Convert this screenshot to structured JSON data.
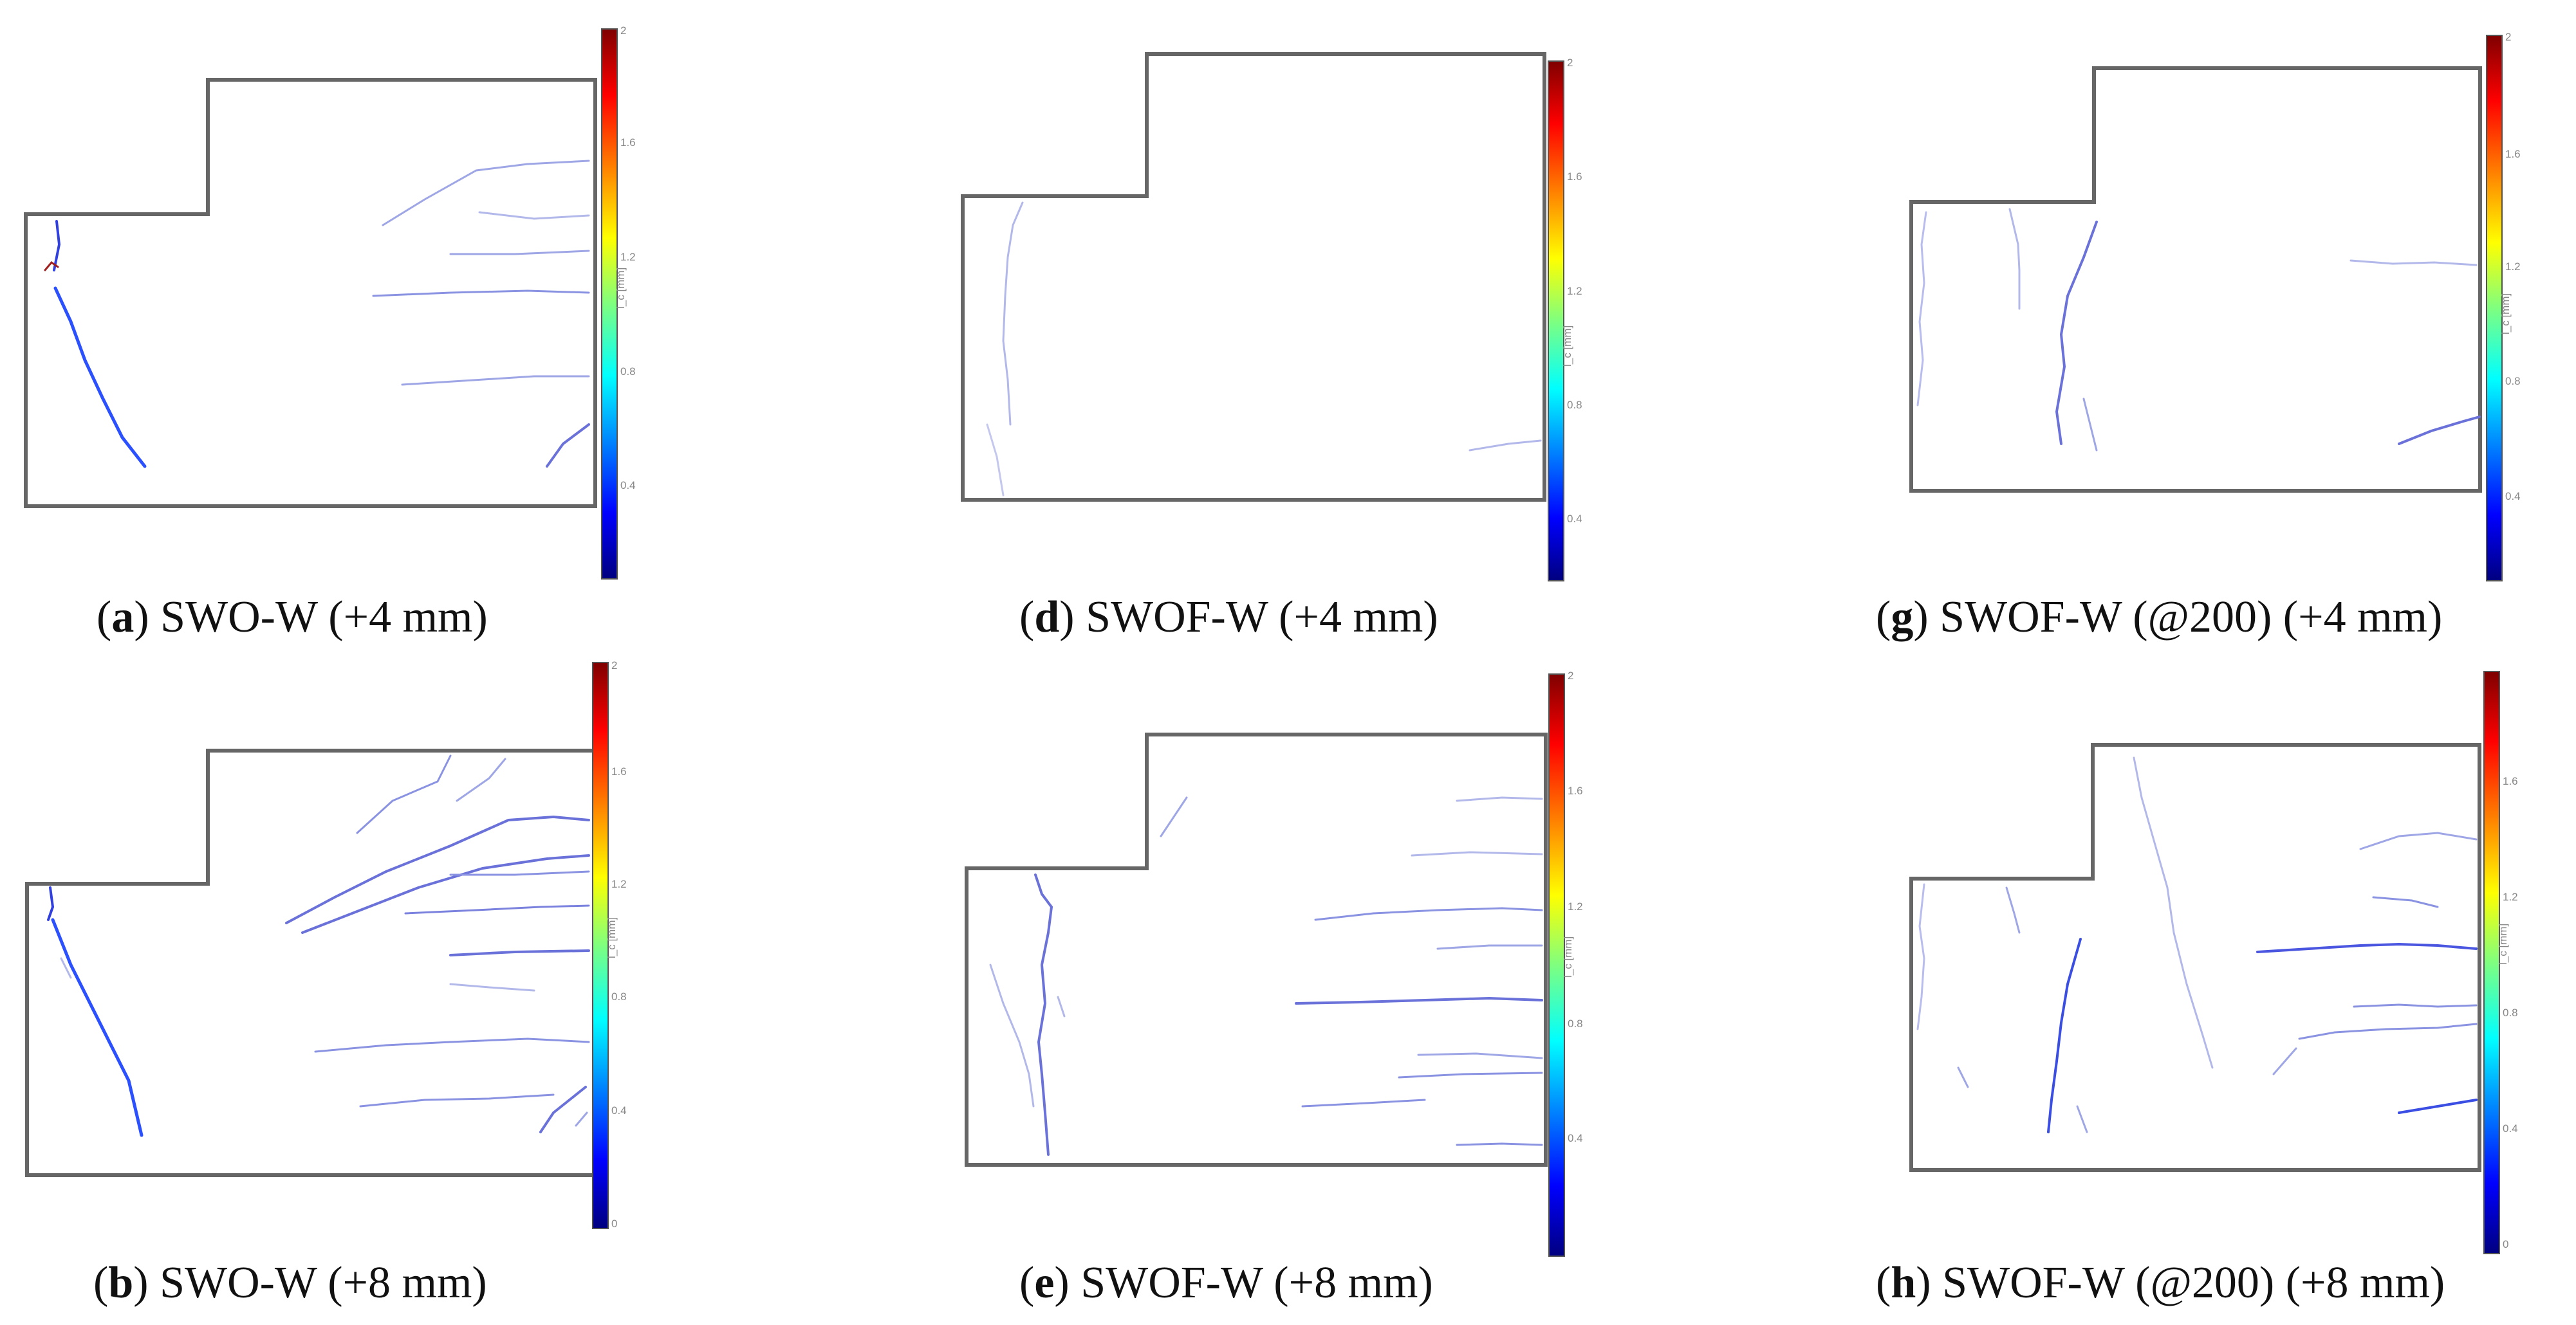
{
  "colorbar": {
    "gradient_colors": [
      "#00007f",
      "#0000ff",
      "#00ffff",
      "#7fff7f",
      "#ffff00",
      "#ff7f00",
      "#ff0000",
      "#7f0000"
    ],
    "symbol_label": "l_c [mm]",
    "outline_color": "#666666",
    "crack_color": "#2a3cd8"
  },
  "panels": [
    {
      "letter": "a",
      "open": "(",
      "close": ")",
      "caption": " SWO-W (+4 mm)",
      "ticks": [
        "2",
        "1.6",
        "1.2",
        "0.8",
        "0.4"
      ]
    },
    {
      "letter": "d",
      "open": "(",
      "close": ")",
      "caption": " SWOF-W (+4 mm)",
      "ticks": [
        "2",
        "1.6",
        "1.2",
        "0.8",
        "0.4"
      ]
    },
    {
      "letter": "g",
      "open": "(",
      "close": ")",
      "caption": " SWOF-W (@200) (+4 mm)",
      "ticks": [
        "2",
        "1.6",
        "1.2",
        "0.8",
        "0.4"
      ]
    },
    {
      "letter": "b",
      "open": "(",
      "close": ")",
      "caption": " SWO-W (+8 mm)",
      "ticks": [
        "2",
        "1.6",
        "1.2",
        "0.8",
        "0.4",
        "0"
      ]
    },
    {
      "letter": "e",
      "open": "(",
      "close": ")",
      "caption": " SWOF-W (+8 mm)",
      "ticks": [
        "2",
        "1.6",
        "1.2",
        "0.8",
        "0.4"
      ]
    },
    {
      "letter": "h",
      "open": "(",
      "close": ")",
      "caption": " SWOF-W (@200) (+8 mm)",
      "ticks": [
        "1.6",
        "1.2",
        "0.8",
        "0.4",
        "0"
      ]
    }
  ]
}
